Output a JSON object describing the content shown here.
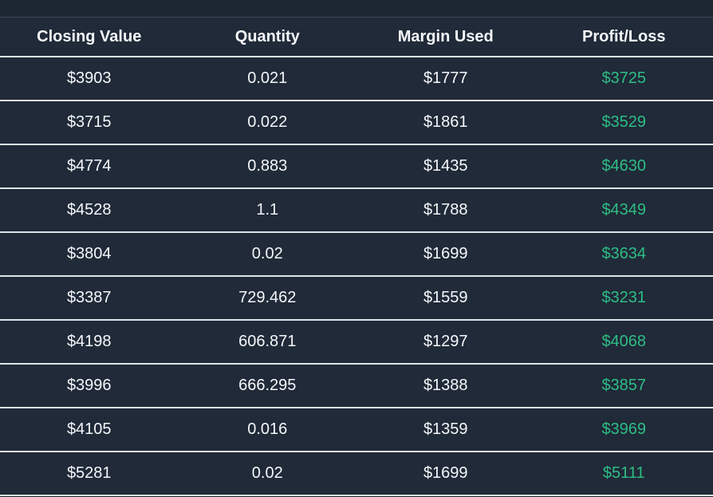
{
  "colors": {
    "page_background": "#1d2633",
    "table_background": "#202a38",
    "row_border": "#dee3ea",
    "text": "#f5f7fa",
    "profit_positive": "#2ebd85"
  },
  "table": {
    "columns": [
      {
        "key": "closing_value",
        "label": "Closing Value"
      },
      {
        "key": "quantity",
        "label": "Quantity"
      },
      {
        "key": "margin_used",
        "label": "Margin Used"
      },
      {
        "key": "profit_loss",
        "label": "Profit/Loss"
      }
    ],
    "rows": [
      {
        "closing_value": "$3903",
        "quantity": "0.021",
        "margin_used": "$1777",
        "profit_loss": "$3725"
      },
      {
        "closing_value": "$3715",
        "quantity": "0.022",
        "margin_used": "$1861",
        "profit_loss": "$3529"
      },
      {
        "closing_value": "$4774",
        "quantity": "0.883",
        "margin_used": "$1435",
        "profit_loss": "$4630"
      },
      {
        "closing_value": "$4528",
        "quantity": "1.1",
        "margin_used": "$1788",
        "profit_loss": "$4349"
      },
      {
        "closing_value": "$3804",
        "quantity": "0.02",
        "margin_used": "$1699",
        "profit_loss": "$3634"
      },
      {
        "closing_value": "$3387",
        "quantity": "729.462",
        "margin_used": "$1559",
        "profit_loss": "$3231"
      },
      {
        "closing_value": "$4198",
        "quantity": "606.871",
        "margin_used": "$1297",
        "profit_loss": "$4068"
      },
      {
        "closing_value": "$3996",
        "quantity": "666.295",
        "margin_used": "$1388",
        "profit_loss": "$3857"
      },
      {
        "closing_value": "$4105",
        "quantity": "0.016",
        "margin_used": "$1359",
        "profit_loss": "$3969"
      },
      {
        "closing_value": "$5281",
        "quantity": "0.02",
        "margin_used": "$1699",
        "profit_loss": "$5111"
      }
    ]
  }
}
